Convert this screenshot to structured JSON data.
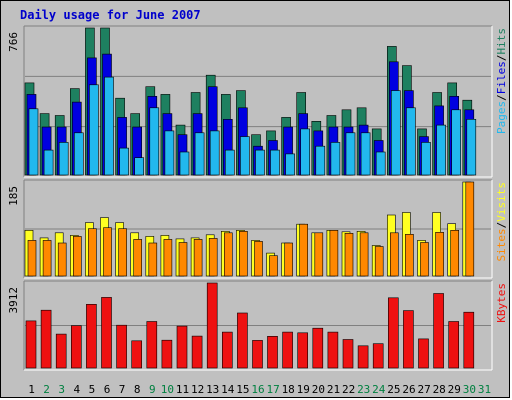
{
  "title": "Daily usage for June 2007",
  "colors": {
    "hits": "#1e8060",
    "files": "#0000e0",
    "pages": "#22b8ee",
    "visits": "#ffff22",
    "sites": "#ff8800",
    "kbytes": "#ee1111",
    "day_normal": "#000000",
    "day_weekend": "#008040"
  },
  "chart_data": [
    {
      "type": "bar",
      "panel": "hits-files-pages",
      "ymax_label": "766",
      "ylim": [
        0,
        766
      ],
      "legend": [
        "Pages",
        "Files",
        "Hits"
      ],
      "legend_separator": "/",
      "categories": [
        "1",
        "2",
        "3",
        "4",
        "5",
        "6",
        "7",
        "8",
        "9",
        "10",
        "11",
        "12",
        "13",
        "14",
        "15",
        "16",
        "17",
        "18",
        "19",
        "20",
        "21",
        "22",
        "23",
        "24",
        "25",
        "26",
        "27",
        "28",
        "29",
        "30",
        "31"
      ],
      "series": [
        {
          "name": "Hits",
          "values": [
            480,
            320,
            310,
            450,
            766,
            766,
            400,
            320,
            460,
            420,
            260,
            430,
            520,
            420,
            440,
            210,
            230,
            300,
            430,
            280,
            310,
            340,
            350,
            240,
            670,
            570,
            240,
            430,
            480,
            390,
            null
          ]
        },
        {
          "name": "Files",
          "values": [
            420,
            250,
            250,
            380,
            610,
            630,
            300,
            250,
            410,
            320,
            210,
            320,
            460,
            290,
            350,
            150,
            180,
            250,
            320,
            230,
            250,
            250,
            260,
            180,
            590,
            440,
            200,
            360,
            410,
            340,
            null
          ]
        },
        {
          "name": "Pages",
          "values": [
            345,
            130,
            170,
            220,
            470,
            510,
            140,
            90,
            350,
            230,
            120,
            220,
            230,
            130,
            200,
            130,
            130,
            110,
            240,
            150,
            170,
            220,
            220,
            120,
            440,
            350,
            170,
            260,
            340,
            290,
            null
          ]
        }
      ]
    },
    {
      "type": "bar",
      "panel": "visits-sites",
      "ymax_label": "185",
      "ylim": [
        0,
        185
      ],
      "legend": [
        "Sites",
        "Visits"
      ],
      "legend_separator": "/",
      "categories": [
        "1",
        "2",
        "3",
        "4",
        "5",
        "6",
        "7",
        "8",
        "9",
        "10",
        "11",
        "12",
        "13",
        "14",
        "15",
        "16",
        "17",
        "18",
        "19",
        "20",
        "21",
        "22",
        "23",
        "24",
        "25",
        "26",
        "27",
        "28",
        "29",
        "30",
        "31"
      ],
      "series": [
        {
          "name": "Visits",
          "values": [
            90,
            75,
            85,
            80,
            105,
            115,
            105,
            85,
            78,
            80,
            73,
            75,
            81,
            88,
            90,
            70,
            45,
            65,
            102,
            85,
            90,
            87,
            88,
            60,
            120,
            125,
            70,
            125,
            103,
            185,
            null
          ]
        },
        {
          "name": "Sites",
          "values": [
            70,
            70,
            65,
            78,
            93,
            95,
            93,
            72,
            65,
            72,
            66,
            72,
            74,
            85,
            88,
            68,
            40,
            65,
            102,
            85,
            90,
            84,
            85,
            58,
            85,
            82,
            66,
            86,
            90,
            185,
            null
          ]
        }
      ]
    },
    {
      "type": "bar",
      "panel": "kbytes",
      "ymax_label": "3912",
      "ylim": [
        0,
        3912
      ],
      "legend": [
        "KBytes"
      ],
      "legend_separator": "",
      "categories": [
        "1",
        "2",
        "3",
        "4",
        "5",
        "6",
        "7",
        "8",
        "9",
        "10",
        "11",
        "12",
        "13",
        "14",
        "15",
        "16",
        "17",
        "18",
        "19",
        "20",
        "21",
        "22",
        "23",
        "24",
        "25",
        "26",
        "27",
        "28",
        "29",
        "30",
        "31"
      ],
      "series": [
        {
          "name": "KBytes",
          "values": [
            2170,
            2660,
            1560,
            1950,
            2930,
            3250,
            1970,
            1250,
            2140,
            1280,
            1930,
            1470,
            3912,
            1650,
            2530,
            1270,
            1460,
            1650,
            1620,
            1830,
            1650,
            1310,
            1020,
            1120,
            3230,
            2640,
            1340,
            3430,
            2140,
            2570,
            null
          ]
        }
      ]
    }
  ],
  "weekend_days": [
    "2",
    "3",
    "9",
    "10",
    "16",
    "17",
    "23",
    "24",
    "30",
    "31"
  ]
}
